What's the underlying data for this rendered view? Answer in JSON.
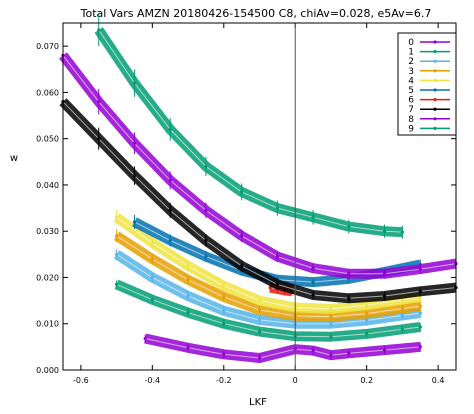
{
  "chart_data": {
    "type": "line",
    "title": "Total Vars  AMZN 20180426-154500  C8, chiAv=0.028, e5Av=6.7",
    "xlabel": "LKF",
    "ylabel": "w",
    "xlim": [
      -0.65,
      0.45
    ],
    "ylim": [
      0.0,
      0.075
    ],
    "x_ticks": [
      "-0.6",
      "-0.4",
      "-0.2",
      "0",
      "0.2",
      "0.4"
    ],
    "x_tick_values": [
      -0.6,
      -0.4,
      -0.2,
      0.0,
      0.2,
      0.4
    ],
    "y_ticks": [
      "0.000",
      "0.010",
      "0.020",
      "0.030",
      "0.040",
      "0.050",
      "0.060",
      "0.070"
    ],
    "y_tick_values": [
      0.0,
      0.01,
      0.02,
      0.03,
      0.04,
      0.05,
      0.06,
      0.07
    ],
    "vline_x": 0.0,
    "legend_position": "top-right",
    "series": [
      {
        "name": "0",
        "color": "#9400d3",
        "points": [
          [
            -0.42,
            0.0068
          ],
          [
            -0.3,
            0.0048
          ],
          [
            -0.2,
            0.0034
          ],
          [
            -0.1,
            0.0026
          ],
          [
            0.0,
            0.0045
          ],
          [
            0.05,
            0.0042
          ],
          [
            0.1,
            0.0032
          ],
          [
            0.15,
            0.0036
          ],
          [
            0.25,
            0.0043
          ],
          [
            0.35,
            0.005
          ]
        ]
      },
      {
        "name": "1",
        "color": "#009e73",
        "points": [
          [
            -0.5,
            0.0185
          ],
          [
            -0.4,
            0.0152
          ],
          [
            -0.3,
            0.0124
          ],
          [
            -0.2,
            0.01
          ],
          [
            -0.1,
            0.0083
          ],
          [
            0.0,
            0.0073
          ],
          [
            0.1,
            0.0072
          ],
          [
            0.2,
            0.0078
          ],
          [
            0.3,
            0.0088
          ],
          [
            0.35,
            0.0093
          ]
        ]
      },
      {
        "name": "2",
        "color": "#56b4e9",
        "points": [
          [
            -0.5,
            0.025
          ],
          [
            -0.4,
            0.02
          ],
          [
            -0.3,
            0.016
          ],
          [
            -0.2,
            0.0128
          ],
          [
            -0.1,
            0.0108
          ],
          [
            0.0,
            0.01
          ],
          [
            0.1,
            0.01
          ],
          [
            0.2,
            0.0107
          ],
          [
            0.3,
            0.0118
          ],
          [
            0.35,
            0.0123
          ]
        ]
      },
      {
        "name": "3",
        "color": "#e69f00",
        "points": [
          [
            -0.5,
            0.029
          ],
          [
            -0.4,
            0.024
          ],
          [
            -0.3,
            0.0195
          ],
          [
            -0.2,
            0.0158
          ],
          [
            -0.1,
            0.013
          ],
          [
            0.0,
            0.0117
          ],
          [
            0.1,
            0.0115
          ],
          [
            0.2,
            0.0122
          ],
          [
            0.3,
            0.0133
          ],
          [
            0.35,
            0.0138
          ]
        ]
      },
      {
        "name": "4",
        "color": "#f0e442",
        "points": [
          [
            -0.5,
            0.033
          ],
          [
            -0.4,
            0.0275
          ],
          [
            -0.3,
            0.0225
          ],
          [
            -0.2,
            0.0182
          ],
          [
            -0.1,
            0.015
          ],
          [
            0.0,
            0.0135
          ],
          [
            0.1,
            0.0132
          ],
          [
            0.2,
            0.014
          ],
          [
            0.3,
            0.0152
          ],
          [
            0.35,
            0.0158
          ]
        ]
      },
      {
        "name": "5",
        "color": "#0072b2",
        "points": [
          [
            -0.45,
            0.032
          ],
          [
            -0.35,
            0.028
          ],
          [
            -0.25,
            0.0245
          ],
          [
            -0.15,
            0.0215
          ],
          [
            -0.05,
            0.0195
          ],
          [
            0.05,
            0.019
          ],
          [
            0.15,
            0.0197
          ],
          [
            0.25,
            0.0212
          ],
          [
            0.35,
            0.0228
          ]
        ]
      },
      {
        "name": "6",
        "color": "#e51e10",
        "points": [
          [
            -0.07,
            0.0178
          ],
          [
            -0.05,
            0.0175
          ],
          [
            -0.03,
            0.0172
          ],
          [
            -0.01,
            0.017
          ]
        ]
      },
      {
        "name": "7",
        "color": "#000000",
        "points": [
          [
            -0.65,
            0.058
          ],
          [
            -0.55,
            0.05
          ],
          [
            -0.45,
            0.042
          ],
          [
            -0.35,
            0.0345
          ],
          [
            -0.25,
            0.028
          ],
          [
            -0.15,
            0.0225
          ],
          [
            -0.05,
            0.0185
          ],
          [
            0.05,
            0.0162
          ],
          [
            0.15,
            0.0155
          ],
          [
            0.25,
            0.016
          ],
          [
            0.35,
            0.017
          ],
          [
            0.45,
            0.0178
          ]
        ]
      },
      {
        "name": "8",
        "color": "#9400d3",
        "points": [
          [
            -0.65,
            0.068
          ],
          [
            -0.55,
            0.058
          ],
          [
            -0.45,
            0.049
          ],
          [
            -0.35,
            0.041
          ],
          [
            -0.25,
            0.0345
          ],
          [
            -0.15,
            0.029
          ],
          [
            -0.05,
            0.0245
          ],
          [
            0.05,
            0.022
          ],
          [
            0.15,
            0.0208
          ],
          [
            0.25,
            0.0208
          ],
          [
            0.35,
            0.0218
          ],
          [
            0.45,
            0.023
          ]
        ]
      },
      {
        "name": "9",
        "color": "#009e73",
        "points": [
          [
            -0.55,
            0.0735
          ],
          [
            -0.45,
            0.062
          ],
          [
            -0.35,
            0.052
          ],
          [
            -0.25,
            0.044
          ],
          [
            -0.15,
            0.0385
          ],
          [
            -0.05,
            0.035
          ],
          [
            0.05,
            0.033
          ],
          [
            0.15,
            0.031
          ],
          [
            0.25,
            0.03
          ],
          [
            0.3,
            0.0298
          ]
        ]
      }
    ]
  }
}
